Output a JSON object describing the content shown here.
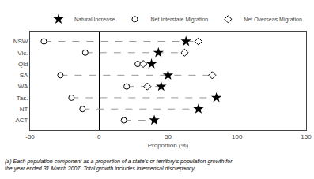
{
  "chart_data": {
    "type": "scatter",
    "orientation": "horizontal",
    "categories": [
      "NSW",
      "Vic.",
      "Qld",
      "SA",
      "WA",
      "Tas.",
      "NT",
      "ACT"
    ],
    "series": [
      {
        "name": "Natural Increase",
        "color": "#000000",
        "marker": "star",
        "values": [
          63,
          43,
          38,
          50,
          45,
          85,
          72,
          40
        ]
      },
      {
        "name": "Net Interstate Migration",
        "color": "#000000",
        "marker": "circle-open",
        "values": [
          -40,
          -10,
          28,
          -28,
          20,
          -20,
          -12,
          18
        ]
      },
      {
        "name": "Net Overseas Migration",
        "color": "#000000",
        "marker": "diamond-open",
        "values": [
          72,
          62,
          32,
          82,
          35,
          null,
          null,
          null
        ]
      }
    ],
    "xlim": [
      -50,
      150
    ],
    "xticks": [
      -50,
      0,
      50,
      100,
      150
    ],
    "xlabel": "Proportion (%)",
    "annotations": [
      "(a) Each population component as a proportion of a state's or territory's population growth for\nthe year ended 31 March 2007. Total growth includes intercensal discrepancy."
    ],
    "legend": "upper right",
    "grid": false,
    "line_style": "dashed",
    "color": "#999999"
  }
}
